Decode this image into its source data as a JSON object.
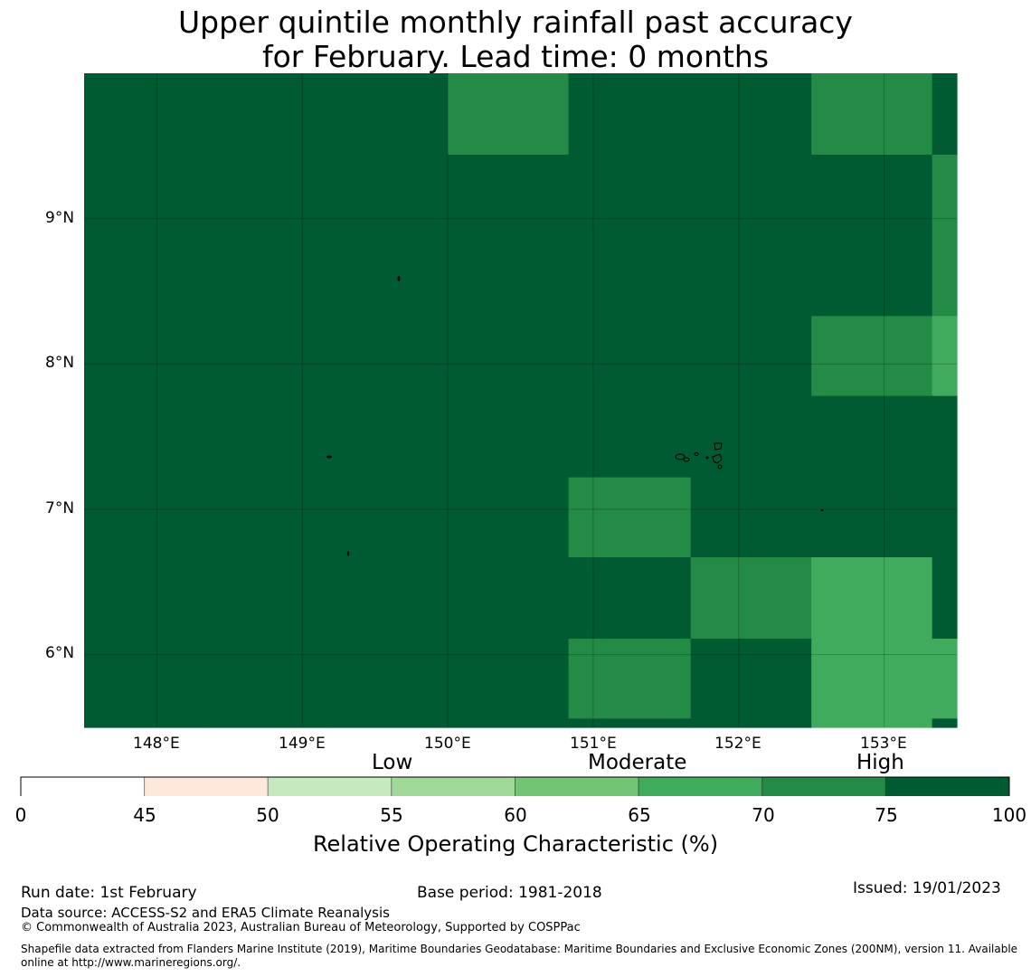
{
  "title": {
    "line1": "Upper quintile monthly rainfall past accuracy",
    "line2": "for February. Lead time: 0 months"
  },
  "map": {
    "lon_range": [
      147.5,
      153.5
    ],
    "lat_range": [
      5.5,
      10.0
    ],
    "x_ticks": [
      "148°E",
      "149°E",
      "150°E",
      "151°E",
      "152°E",
      "153°E"
    ],
    "x_tick_values": [
      148,
      149,
      150,
      151,
      152,
      153
    ],
    "y_ticks": [
      "9°N",
      "8°N",
      "7°N",
      "6°N"
    ],
    "y_tick_values": [
      9,
      8,
      7,
      6
    ],
    "grid_columns_lon": [
      147.5,
      148.33,
      149.17,
      150.0,
      150.83,
      151.67,
      152.5,
      153.33,
      153.5
    ],
    "grid_rows_lat": [
      10.0,
      9.44,
      8.89,
      8.33,
      7.78,
      7.22,
      6.67,
      6.11,
      5.56,
      5.5
    ],
    "cell_values": [
      [
        80,
        80,
        80,
        70,
        75,
        80,
        70,
        80
      ],
      [
        80,
        80,
        75,
        80,
        80,
        80,
        75,
        70
      ],
      [
        80,
        80,
        80,
        80,
        80,
        75,
        75,
        70
      ],
      [
        75,
        80,
        80,
        80,
        80,
        75,
        70,
        65
      ],
      [
        80,
        80,
        80,
        80,
        80,
        75,
        75,
        75
      ],
      [
        80,
        80,
        75,
        80,
        70,
        75,
        80,
        80
      ],
      [
        80,
        80,
        80,
        80,
        80,
        70,
        65,
        75
      ],
      [
        75,
        80,
        80,
        75,
        70,
        75,
        65,
        65
      ],
      [
        80,
        80,
        80,
        80,
        80,
        80,
        65,
        75
      ]
    ],
    "land_color": "#000000"
  },
  "colorbar": {
    "categories": [
      "Low",
      "Moderate",
      "High"
    ],
    "ticks": [
      "0",
      "45",
      "50",
      "55",
      "60",
      "65",
      "70",
      "75",
      "100"
    ],
    "bins": [
      {
        "min": 0,
        "max": 45,
        "color": "#ffffff"
      },
      {
        "min": 45,
        "max": 50,
        "color": "#fee8de"
      },
      {
        "min": 50,
        "max": 55,
        "color": "#c7e9c0"
      },
      {
        "min": 55,
        "max": 60,
        "color": "#a1d99b"
      },
      {
        "min": 60,
        "max": 65,
        "color": "#74c476"
      },
      {
        "min": 65,
        "max": 70,
        "color": "#41ab5d"
      },
      {
        "min": 70,
        "max": 75,
        "color": "#238b45"
      },
      {
        "min": 75,
        "max": 100,
        "color": "#005a32"
      }
    ],
    "label": "Relative Operating Characteristic (%)"
  },
  "footer": {
    "run_date": "Run date: 1st February",
    "base_period": "Base period: 1981-2018",
    "issued": "Issued: 19/01/2023",
    "data_source": "Data source: ACCESS-S2 and ERA5 Climate Reanalysis",
    "copyright": "© Commonwealth of Australia 2023, Australian Bureau of Meteorology, Supported by COSPPac",
    "shapefile_line1": "Shapefile data extracted from Flanders Marine Institute (2019), Maritime Boundaries Geodatabase: Maritime Boundaries and Exclusive Economic Zones (200NM), version 11. Available",
    "shapefile_line2": "online at http://www.marineregions.org/."
  }
}
